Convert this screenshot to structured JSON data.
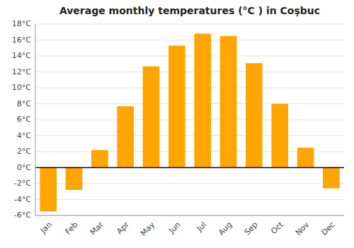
{
  "chart_data": {
    "type": "bar",
    "title": "Average monthly temperatures (°C ) in Coşbuc",
    "categories": [
      "Jan",
      "Feb",
      "Mar",
      "Apr",
      "May",
      "Jun",
      "Jul",
      "Aug",
      "Sep",
      "Oct",
      "Nov",
      "Dec"
    ],
    "values": [
      -5.5,
      -2.8,
      2.2,
      7.7,
      12.7,
      15.3,
      16.8,
      16.5,
      13.1,
      8.0,
      2.5,
      -2.6
    ],
    "color": "#FFA500",
    "ylim": [
      -6,
      18
    ],
    "yticks": [
      {
        "value": -6,
        "label": "-6°C"
      },
      {
        "value": -4,
        "label": "-4°C"
      },
      {
        "value": -2,
        "label": "-2°C"
      },
      {
        "value": 0,
        "label": "0°C"
      },
      {
        "value": 2,
        "label": "2°C"
      },
      {
        "value": 4,
        "label": "4°C"
      },
      {
        "value": 6,
        "label": "6°C"
      },
      {
        "value": 8,
        "label": "8°C"
      },
      {
        "value": 10,
        "label": "10°C"
      },
      {
        "value": 12,
        "label": "12°C"
      },
      {
        "value": 14,
        "label": "14°C"
      },
      {
        "value": 16,
        "label": "16°C"
      },
      {
        "value": 18,
        "label": "18°C"
      }
    ],
    "grid": true
  }
}
